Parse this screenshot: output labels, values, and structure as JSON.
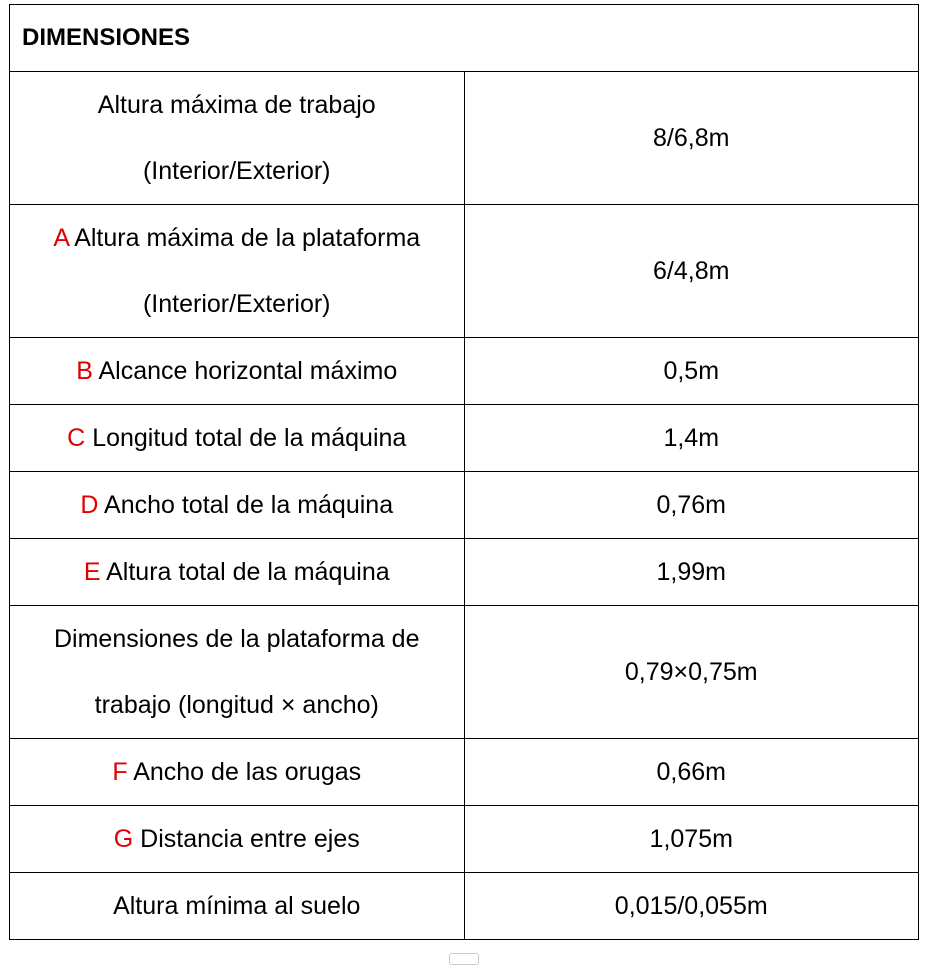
{
  "title": "DIMENSIONES",
  "rows": [
    {
      "letter": "",
      "label": "Altura máxima de trabajo (Interior/Exterior)",
      "value": "8/6,8m"
    },
    {
      "letter": "A",
      "label": "Altura máxima de la plataforma (Interior/Exterior)",
      "value": "6/4,8m"
    },
    {
      "letter": "B",
      "label": "Alcance horizontal máximo",
      "value": "0,5m"
    },
    {
      "letter": "C",
      "label": "Longitud total de la máquina",
      "value": "1,4m"
    },
    {
      "letter": "D",
      "label": "Ancho total de la máquina",
      "value": "0,76m"
    },
    {
      "letter": "E",
      "label": "Altura total de la máquina",
      "value": "1,99m"
    },
    {
      "letter": "",
      "label": "Dimensiones de la plataforma de trabajo (longitud × ancho)",
      "value": "0,79×0,75m"
    },
    {
      "letter": "F",
      "label": "Ancho de las orugas",
      "value": "0,66m"
    },
    {
      "letter": "G",
      "label": "Distancia entre ejes",
      "value": "1,075m"
    },
    {
      "letter": "",
      "label": "Altura mínima al suelo",
      "value": "0,015/0,055m"
    }
  ],
  "colors": {
    "letter": "#e00000",
    "border": "#000000"
  }
}
